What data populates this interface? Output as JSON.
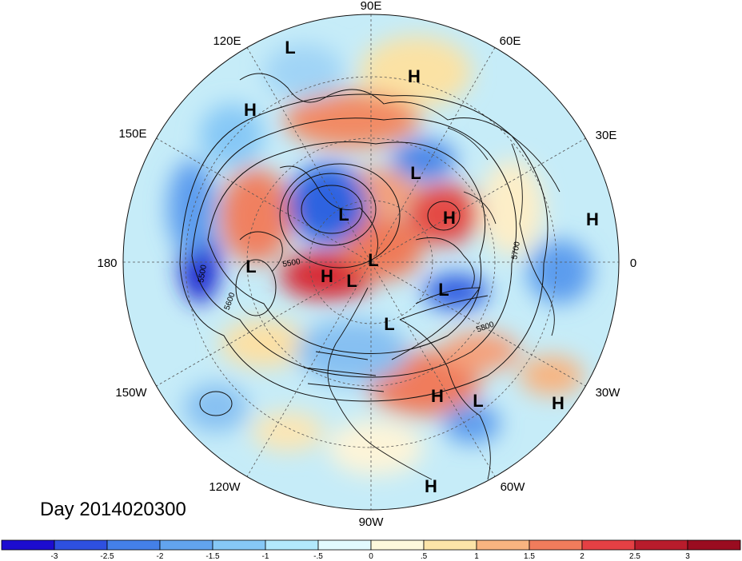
{
  "title": "Day 2014020300",
  "longitude_labels": {
    "lon_90e": "90E",
    "lon_60e": "60E",
    "lon_30e": "30E",
    "lon_0": "0",
    "lon_30w": "30W",
    "lon_60w": "60W",
    "lon_90w": "90W",
    "lon_120w": "120W",
    "lon_150w": "150W",
    "lon_180": "180",
    "lon_150e": "150E",
    "lon_120e": "120E"
  },
  "pressure_centers": [
    {
      "type": "L",
      "label": "L"
    },
    {
      "type": "H",
      "label": "H"
    },
    {
      "type": "H",
      "label": "H"
    },
    {
      "type": "L",
      "label": "L"
    },
    {
      "type": "L",
      "label": "L"
    },
    {
      "type": "H",
      "label": "H"
    },
    {
      "type": "H",
      "label": "H"
    },
    {
      "type": "L",
      "label": "L"
    },
    {
      "type": "H",
      "label": "H"
    },
    {
      "type": "L",
      "label": "L"
    },
    {
      "type": "L",
      "label": "L"
    },
    {
      "type": "L",
      "label": "L"
    },
    {
      "type": "L",
      "label": "L"
    },
    {
      "type": "H",
      "label": "H"
    },
    {
      "type": "L",
      "label": "L"
    },
    {
      "type": "H",
      "label": "H"
    },
    {
      "type": "H",
      "label": "H"
    }
  ],
  "contour_labels": [
    "5500",
    "5600",
    "5500",
    "5700",
    "5800"
  ],
  "colorbar": {
    "ticks": [
      "-3",
      "-2.5",
      "-2",
      "-1.5",
      "-1",
      "-.5",
      "0",
      ".5",
      "1",
      "1.5",
      "2",
      "2.5",
      "3"
    ],
    "colors": [
      "#1c0cd0",
      "#2e50e0",
      "#4480e8",
      "#62a4ee",
      "#86c8f6",
      "#b2e8fc",
      "#e2fafe",
      "#fdf8dc",
      "#fce4a8",
      "#f8b480",
      "#f07c5c",
      "#e44044",
      "#b81c2c",
      "#9a0c20"
    ]
  }
}
